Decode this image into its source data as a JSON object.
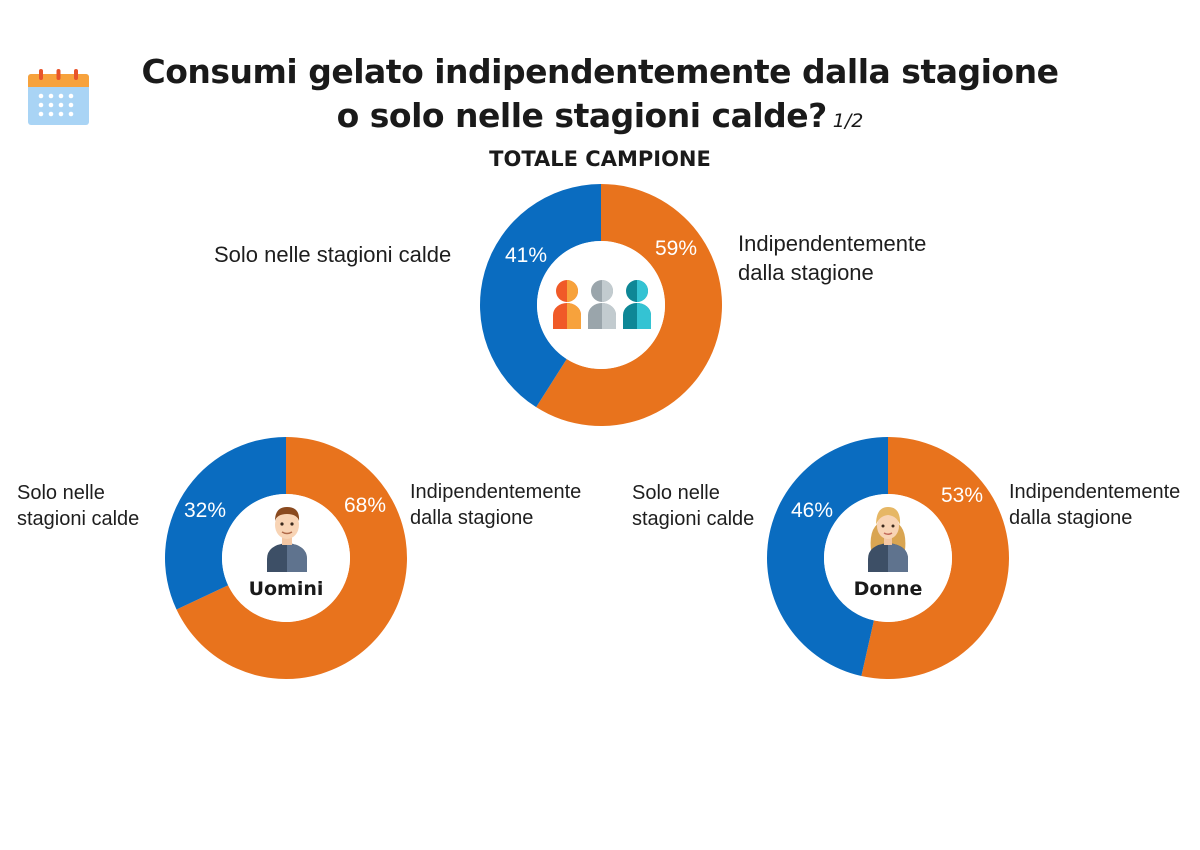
{
  "title": {
    "line1": "Consumi gelato indipendentemente dalla stagione",
    "line2": "o solo nelle stagioni calde?",
    "pager": "1/2"
  },
  "colors": {
    "orange": "#E8731D",
    "blue": "#0A6CC0",
    "text": "#1e1e1e"
  },
  "icons": [
    "calendar-icon",
    "people-group-icon",
    "man-avatar-icon",
    "woman-avatar-icon"
  ],
  "chart_data": [
    {
      "type": "pie",
      "variant": "donut",
      "title": "TOTALE CAMPIONE",
      "categories": [
        "Indipendentemente dalla stagione",
        "Solo nelle stagioni calde"
      ],
      "values": [
        59,
        41
      ],
      "value_labels": [
        "59%",
        "41%"
      ],
      "colors": [
        "#E8731D",
        "#0A6CC0"
      ],
      "label_left": "Solo nelle stagioni calde",
      "label_right_1": "Indipendentemente",
      "label_right_2": "dalla stagione"
    },
    {
      "type": "pie",
      "variant": "donut",
      "center_label": "Uomini",
      "categories": [
        "Indipendentemente dalla stagione",
        "Solo nelle stagioni calde"
      ],
      "values": [
        68,
        32
      ],
      "value_labels": [
        "68%",
        "32%"
      ],
      "colors": [
        "#E8731D",
        "#0A6CC0"
      ],
      "label_left_1": "Solo nelle",
      "label_left_2": "stagioni calde",
      "label_right_1": "Indipendentemente",
      "label_right_2": "dalla stagione"
    },
    {
      "type": "pie",
      "variant": "donut",
      "center_label": "Donne",
      "categories": [
        "Indipendentemente dalla stagione",
        "Solo nelle stagioni calde"
      ],
      "values": [
        53,
        46
      ],
      "value_labels": [
        "53%",
        "46%"
      ],
      "colors": [
        "#E8731D",
        "#0A6CC0"
      ],
      "label_left_1": "Solo nelle",
      "label_left_2": "stagioni calde",
      "label_right_1": "Indipendentemente",
      "label_right_2": "dalla stagione"
    }
  ]
}
